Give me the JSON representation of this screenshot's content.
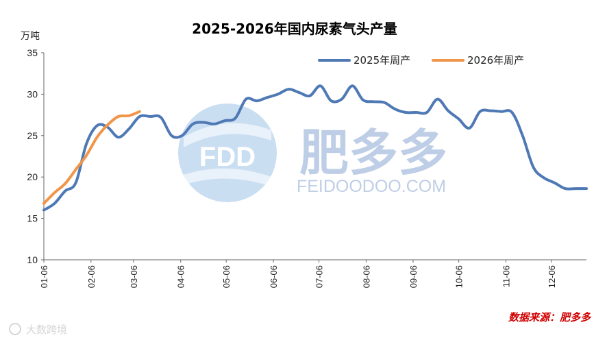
{
  "chart_data": {
    "type": "line",
    "title": "2025-2026年国内尿素气头产量",
    "ylabel": "万吨",
    "ylim": [
      10,
      35
    ],
    "yticks": [
      10,
      15,
      20,
      25,
      30,
      35
    ],
    "x_range": [
      0,
      51
    ],
    "x_ticks": [
      {
        "label": "01-06",
        "pos": 0
      },
      {
        "label": "02-06",
        "pos": 4.43
      },
      {
        "label": "03-06",
        "pos": 8.43
      },
      {
        "label": "04-06",
        "pos": 12.86
      },
      {
        "label": "05-06",
        "pos": 17.14
      },
      {
        "label": "06-06",
        "pos": 21.57
      },
      {
        "label": "07-06",
        "pos": 25.86
      },
      {
        "label": "08-06",
        "pos": 30.29
      },
      {
        "label": "09-06",
        "pos": 34.71
      },
      {
        "label": "10-06",
        "pos": 39.0
      },
      {
        "label": "11-06",
        "pos": 43.43
      },
      {
        "label": "12-06",
        "pos": 47.71
      }
    ],
    "series": [
      {
        "name": "2025年周产",
        "color": "#4e79b5",
        "values": [
          16.0,
          16.8,
          18.3,
          19.3,
          24.0,
          26.2,
          26.0,
          24.8,
          25.8,
          27.3,
          27.3,
          27.2,
          25.0,
          25.0,
          26.4,
          26.6,
          26.4,
          26.8,
          27.1,
          29.4,
          29.2,
          29.6,
          30.0,
          30.6,
          30.2,
          29.8,
          31.0,
          29.2,
          29.4,
          31.0,
          29.3,
          29.1,
          29.0,
          28.2,
          27.8,
          27.8,
          27.8,
          29.4,
          28.0,
          27.0,
          25.9,
          27.9,
          28.0,
          27.9,
          27.8,
          25.0,
          21.2,
          19.9,
          19.3,
          18.6,
          18.6,
          18.6
        ]
      },
      {
        "name": "2026年周产",
        "color": "#f0954a",
        "values": [
          16.8,
          18.1,
          19.2,
          20.9,
          22.6,
          24.8,
          26.3,
          27.3,
          27.4,
          27.9
        ]
      }
    ],
    "legend": "top-right"
  },
  "watermark": {
    "logo_text": "FDD",
    "brand_cn": "肥多多",
    "brand_url": "FEIDOODOO.COM"
  },
  "footer": {
    "source": "数据来源：肥多多",
    "platform": "大数跨境"
  }
}
